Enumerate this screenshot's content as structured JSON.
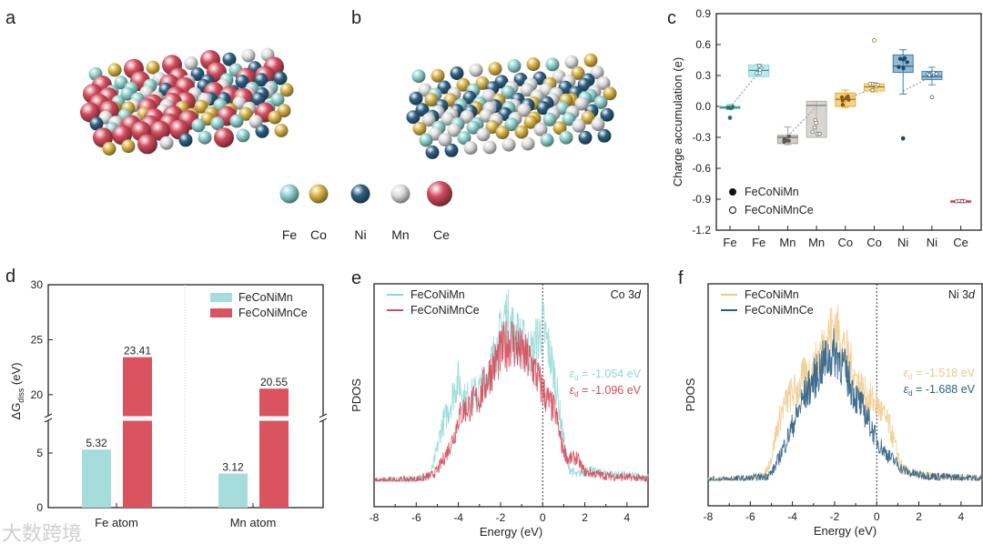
{
  "panel_labels": [
    "a",
    "b",
    "c",
    "d",
    "e",
    "f"
  ],
  "element_legend": {
    "items": [
      {
        "label": "Fe",
        "color": "#8fd3cf"
      },
      {
        "label": "Co",
        "color": "#d9b446"
      },
      {
        "label": "Ni",
        "color": "#2f6183"
      },
      {
        "label": "Mn",
        "color": "#dedede"
      },
      {
        "label": "Ce",
        "color": "#d24b5c"
      }
    ]
  },
  "watermark": "大数跨境",
  "chart_data": [
    {
      "panel": "c",
      "type": "box",
      "ylabel": "Charge accumulation (e)",
      "ylim": [
        -1.2,
        0.9
      ],
      "yticks": [
        -1.2,
        -0.9,
        -0.6,
        -0.3,
        0.0,
        0.3,
        0.6,
        0.9
      ],
      "ytick_labels": [
        "-1.2",
        "-0.9",
        "-0.6",
        "-0.3",
        "0.0",
        "0.3",
        "0.6",
        "0.9"
      ],
      "categories": [
        "Fe",
        "Fe",
        "Mn",
        "Mn",
        "Co",
        "Co",
        "Ni",
        "Ni",
        "Ce"
      ],
      "legend": [
        {
          "label": "FeCoNiMn",
          "marker": "filled"
        },
        {
          "label": "FeCoNiMnCe",
          "marker": "open"
        }
      ],
      "boxes": [
        {
          "cat": "Fe",
          "series": "FeCoNiMn",
          "color": "#5fc9cf",
          "q1": -0.02,
          "median": -0.01,
          "q3": 0.0,
          "min": -0.03,
          "max": 0.02,
          "outliers": [
            -0.11
          ],
          "mean": -0.01
        },
        {
          "cat": "Fe",
          "series": "FeCoNiMnCe",
          "color": "#7fd8de",
          "q1": 0.29,
          "median": 0.35,
          "q3": 0.4,
          "min": 0.29,
          "max": 0.41,
          "outliers": [],
          "mean": 0.33
        },
        {
          "cat": "Mn",
          "series": "FeCoNiMn",
          "color": "#a8a29e",
          "q1": -0.36,
          "median": -0.3,
          "q3": -0.28,
          "min": -0.37,
          "max": -0.2,
          "outliers": [],
          "mean": -0.29
        },
        {
          "cat": "Mn",
          "series": "FeCoNiMnCe",
          "color": "#b8b2ae",
          "q1": -0.3,
          "median": 0.01,
          "q3": 0.05,
          "min": -0.3,
          "max": 0.05,
          "outliers": [],
          "mean": 0.0
        },
        {
          "cat": "Co",
          "series": "FeCoNiMn",
          "color": "#eeab2a",
          "q1": 0.0,
          "median": 0.07,
          "q3": 0.13,
          "min": -0.01,
          "max": 0.16,
          "outliers": [],
          "mean": 0.07
        },
        {
          "cat": "Co",
          "series": "FeCoNiMnCe",
          "color": "#f0b840",
          "q1": 0.15,
          "median": 0.19,
          "q3": 0.22,
          "min": 0.14,
          "max": 0.23,
          "outliers": [
            0.64
          ],
          "mean": 0.18
        },
        {
          "cat": "Ni",
          "series": "FeCoNiMn",
          "color": "#3b7fb0",
          "q1": 0.33,
          "median": 0.39,
          "q3": 0.5,
          "min": 0.12,
          "max": 0.55,
          "outliers": [
            -0.31
          ],
          "mean": 0.15
        },
        {
          "cat": "Ni",
          "series": "FeCoNiMnCe",
          "color": "#4a8dbf",
          "q1": 0.26,
          "median": 0.29,
          "q3": 0.34,
          "min": 0.21,
          "max": 0.38,
          "outliers": [
            0.09
          ],
          "mean": 0.29
        },
        {
          "cat": "Ce",
          "series": "FeCoNiMnCe",
          "color": "#e06070",
          "q1": -0.925,
          "median": -0.92,
          "q3": -0.915,
          "min": -0.93,
          "max": -0.91,
          "outliers": [],
          "mean": -0.92
        }
      ]
    },
    {
      "panel": "d",
      "type": "bar",
      "ylabel": "ΔG",
      "ylabel_sub": "diss",
      "ylabel_unit": " (eV)",
      "categories": [
        "Fe atom",
        "Mn atom"
      ],
      "series": [
        {
          "name": "FeCoNiMn",
          "color": "#a6dcdc",
          "values": [
            5.32,
            3.12
          ],
          "labels": [
            "5.32",
            "3.12"
          ]
        },
        {
          "name": "FeCoNiMnCe",
          "color": "#d9545f",
          "values": [
            23.41,
            20.55
          ],
          "labels": [
            "23.41",
            "20.55"
          ]
        }
      ],
      "ylim": [
        0,
        30
      ],
      "axis_break": [
        8,
        18
      ],
      "yticks": [
        0,
        5,
        20,
        25,
        30
      ],
      "ytick_labels": [
        "0",
        "5",
        "20",
        "25",
        "30"
      ],
      "legend_position": "top-right"
    },
    {
      "panel": "e",
      "type": "line",
      "title": "Co 3",
      "title_italic": "d",
      "xlabel": "Energy (eV)",
      "ylabel": "PDOS",
      "xlim": [
        -8,
        5
      ],
      "xticks": [
        -8,
        -6,
        -4,
        -2,
        0,
        2,
        4
      ],
      "xtick_labels": [
        "-8",
        "-6",
        "-4",
        "-2",
        "0",
        "2",
        "4"
      ],
      "fermi_line": 0,
      "x": [
        -8,
        -6,
        -5.3,
        -5,
        -4.8,
        -4.5,
        -4.2,
        -4,
        -3.7,
        -3.5,
        -3,
        -2.5,
        -2,
        -1.8,
        -1.5,
        -1,
        -0.5,
        0,
        0.3,
        0.6,
        0.9,
        1.2,
        1.6,
        2,
        3,
        5
      ],
      "series": [
        {
          "name": "FeCoNiMn",
          "color": "#8fd8d4",
          "annotation_sym": "ε",
          "annotation_sub": "d",
          "annotation": " = -1.054 eV",
          "y": [
            0.0,
            0.01,
            0.04,
            0.18,
            0.3,
            0.38,
            0.5,
            0.56,
            0.45,
            0.46,
            0.5,
            0.62,
            0.8,
            0.92,
            0.85,
            0.76,
            0.7,
            0.86,
            0.72,
            0.56,
            0.3,
            0.08,
            0.03,
            0.06,
            0.04,
            0.02
          ]
        },
        {
          "name": "FeCoNiMnCe",
          "color": "#d44a5a",
          "annotation_sym": "ε",
          "annotation_sub": "d",
          "annotation": " = -1.096 eV",
          "y": [
            0.0,
            0.01,
            0.03,
            0.06,
            0.1,
            0.17,
            0.25,
            0.35,
            0.4,
            0.41,
            0.46,
            0.6,
            0.7,
            0.74,
            0.78,
            0.7,
            0.64,
            0.5,
            0.43,
            0.38,
            0.2,
            0.12,
            0.13,
            0.05,
            0.03,
            0.01
          ]
        }
      ]
    },
    {
      "panel": "f",
      "type": "line",
      "title": "Ni 3",
      "title_italic": "d",
      "xlabel": "Energy (eV)",
      "ylabel": "PDOS",
      "xlim": [
        -8,
        5
      ],
      "xticks": [
        -8,
        -6,
        -4,
        -2,
        0,
        2,
        4
      ],
      "xtick_labels": [
        "-8",
        "-6",
        "-4",
        "-2",
        "0",
        "2",
        "4"
      ],
      "fermi_line": 0,
      "x": [
        -8,
        -6,
        -5.3,
        -5,
        -4.8,
        -4.5,
        -4.2,
        -4,
        -3.7,
        -3.5,
        -3,
        -2.5,
        -2,
        -1.8,
        -1.5,
        -1,
        -0.5,
        0,
        0.3,
        0.6,
        0.9,
        1.2,
        1.6,
        2,
        3,
        5
      ],
      "series": [
        {
          "name": "FeCoNiMn",
          "color": "#efc88a",
          "annotation_sym": "ε",
          "annotation_sub": "d",
          "annotation": " = -1.518 eV",
          "y": [
            0.0,
            0.01,
            0.03,
            0.12,
            0.25,
            0.38,
            0.45,
            0.48,
            0.5,
            0.56,
            0.6,
            0.75,
            0.86,
            0.8,
            0.72,
            0.56,
            0.46,
            0.42,
            0.36,
            0.3,
            0.18,
            0.07,
            0.04,
            0.03,
            0.02,
            0.01
          ]
        },
        {
          "name": "FeCoNiMnCe",
          "color": "#2b5f86",
          "annotation_sym": "ε",
          "annotation_sub": "d",
          "annotation": " = -1.688 eV",
          "y": [
            0.0,
            0.01,
            0.02,
            0.04,
            0.08,
            0.16,
            0.24,
            0.3,
            0.38,
            0.45,
            0.55,
            0.65,
            0.7,
            0.68,
            0.6,
            0.46,
            0.36,
            0.22,
            0.17,
            0.13,
            0.1,
            0.06,
            0.04,
            0.03,
            0.02,
            0.01
          ]
        }
      ]
    }
  ]
}
